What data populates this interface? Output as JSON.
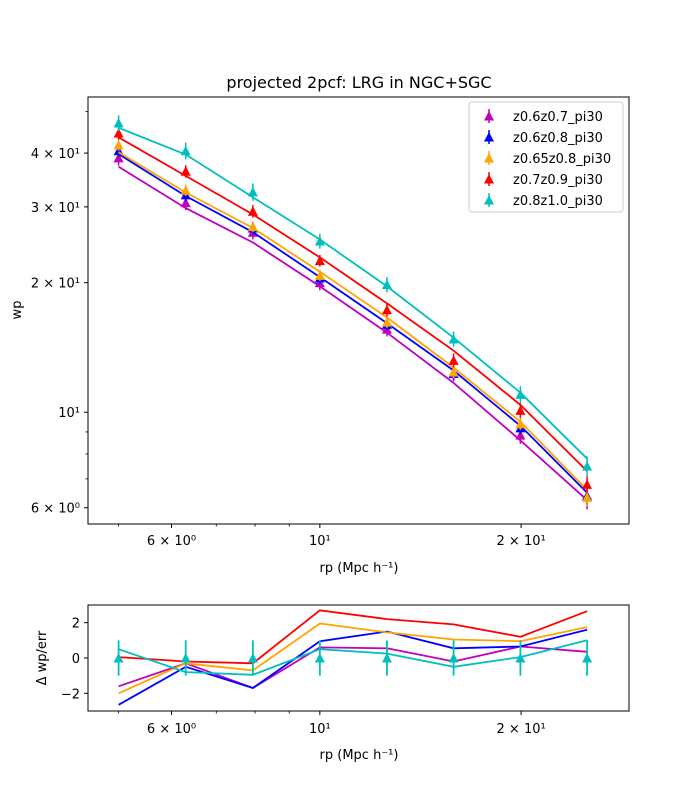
{
  "chart_data": [
    {
      "type": "scatter",
      "title": "projected 2pcf: LRG in NGC+SGC",
      "xlabel": "rp (Mpc h⁻¹)",
      "ylabel": "wp",
      "xscale": "log",
      "yscale": "log",
      "xlim": [
        4.5,
        29
      ],
      "ylim": [
        5.5,
        54
      ],
      "xticks": [
        {
          "value": 6,
          "label": "6 × 10⁰"
        },
        {
          "value": 10,
          "label": "10¹"
        },
        {
          "value": 20,
          "label": "2 × 10¹"
        }
      ],
      "yticks": [
        {
          "value": 6,
          "label": "6 × 10⁰"
        },
        {
          "value": 10,
          "label": "10¹"
        },
        {
          "value": 20,
          "label": "2 × 10¹"
        },
        {
          "value": 30,
          "label": "3 × 10¹"
        },
        {
          "value": 40,
          "label": "4 × 10¹"
        }
      ],
      "legend_position": "upper-right",
      "x": [
        5.0,
        6.3,
        7.94,
        10.0,
        12.6,
        15.85,
        19.95,
        25.1
      ],
      "series": [
        {
          "name": "z0.6z0.7_pi30",
          "color": "#bf00bf",
          "points": [
            39.0,
            30.7,
            26.2,
            20.0,
            15.6,
            12.3,
            8.85,
            6.35
          ],
          "errors": [
            1.6,
            1.2,
            1.0,
            0.8,
            0.6,
            0.5,
            0.4,
            0.4
          ],
          "model": [
            37.2,
            29.8,
            24.8,
            19.6,
            15.3,
            11.7,
            8.6,
            6.25
          ]
        },
        {
          "name": "z0.6z0.8_pi30",
          "color": "#0000ff",
          "points": [
            40.5,
            32.0,
            26.8,
            20.5,
            16.0,
            12.3,
            9.2,
            6.4
          ],
          "errors": [
            1.2,
            1.0,
            0.8,
            0.6,
            0.5,
            0.4,
            0.3,
            0.3
          ],
          "model": [
            39.8,
            31.8,
            26.2,
            20.6,
            16.1,
            12.5,
            9.3,
            6.5
          ]
        },
        {
          "name": "z0.65z0.8_pi30",
          "color": "#ffa500",
          "points": [
            41.8,
            32.8,
            27.0,
            20.8,
            16.2,
            12.4,
            9.4,
            6.35
          ],
          "errors": [
            1.3,
            1.0,
            0.8,
            0.6,
            0.5,
            0.4,
            0.3,
            0.3
          ],
          "model": [
            40.2,
            32.4,
            26.8,
            21.2,
            16.6,
            12.7,
            9.5,
            6.6
          ]
        },
        {
          "name": "z0.7z0.9_pi30",
          "color": "#ff0000",
          "points": [
            44.5,
            36.3,
            29.3,
            22.5,
            17.3,
            13.2,
            10.1,
            6.8
          ],
          "errors": [
            1.5,
            1.2,
            1.0,
            0.7,
            0.6,
            0.5,
            0.4,
            0.3
          ],
          "model": [
            43.5,
            35.4,
            28.8,
            22.9,
            17.9,
            13.9,
            10.4,
            7.3
          ]
        },
        {
          "name": "z0.8z1.0_pi30",
          "color": "#00bfbf",
          "points": [
            47.0,
            40.5,
            32.5,
            25.0,
            19.8,
            14.8,
            11.0,
            7.5
          ],
          "errors": [
            2.0,
            1.8,
            1.5,
            1.0,
            0.8,
            0.6,
            0.5,
            0.4
          ],
          "model": [
            45.8,
            39.7,
            31.6,
            25.2,
            19.6,
            14.9,
            11.1,
            7.8
          ]
        }
      ]
    },
    {
      "type": "line",
      "xlabel": "rp (Mpc h⁻¹)",
      "ylabel": "Δ wp/err",
      "xscale": "log",
      "xlim": [
        4.5,
        29
      ],
      "ylim": [
        -3.0,
        3.0
      ],
      "yticks": [
        -2,
        0,
        2
      ],
      "ytick_labels": [
        "−2",
        "0",
        "2"
      ],
      "x": [
        5.0,
        6.3,
        7.94,
        10.0,
        12.6,
        15.85,
        19.95,
        25.1
      ],
      "markers": {
        "color": "#00bfbf",
        "values": [
          0,
          0,
          0,
          0,
          0,
          0,
          0,
          0
        ],
        "errors": [
          1,
          1,
          1,
          1,
          1,
          1,
          1,
          1
        ]
      },
      "series": [
        {
          "name": "z0.6z0.7_pi30",
          "color": "#bf00bf",
          "values": [
            -1.6,
            -0.3,
            -1.7,
            0.6,
            0.55,
            -0.2,
            0.65,
            0.35
          ]
        },
        {
          "name": "z0.6z0.8_pi30",
          "color": "#0000ff",
          "values": [
            -2.65,
            -0.5,
            -1.7,
            0.95,
            1.5,
            0.55,
            0.65,
            1.6
          ]
        },
        {
          "name": "z0.65z0.8_pi30",
          "color": "#ffa500",
          "values": [
            -2.0,
            -0.3,
            -0.7,
            1.95,
            1.45,
            1.05,
            0.95,
            1.75
          ]
        },
        {
          "name": "z0.7z0.9_pi30",
          "color": "#ff0000",
          "values": [
            0.05,
            -0.2,
            -0.3,
            2.7,
            2.2,
            1.9,
            1.2,
            2.65
          ]
        },
        {
          "name": "z0.8z1.0_pi30",
          "color": "#00bfbf",
          "values": [
            0.5,
            -0.8,
            -0.95,
            0.5,
            0.25,
            -0.5,
            0.05,
            1.0
          ]
        }
      ]
    }
  ]
}
